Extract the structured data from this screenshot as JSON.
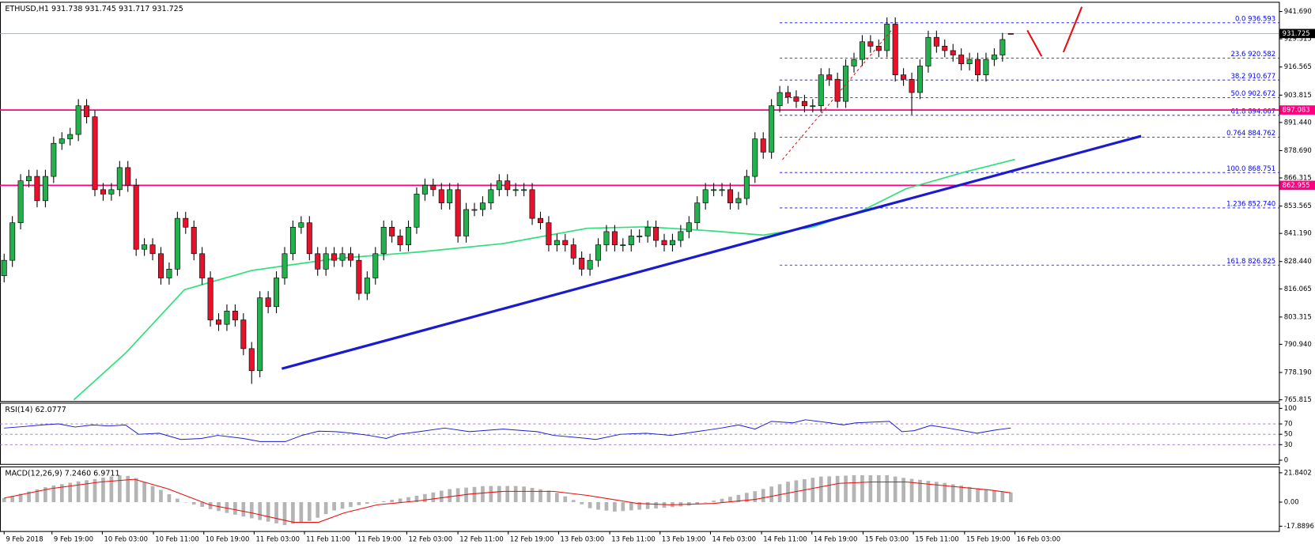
{
  "chart_data": {
    "type": "candlestick",
    "symbol": "ETHUSD,H1",
    "up_color": "#22b14c",
    "down_color": "#e8102a",
    "xlim": [
      -0.5,
      154.5
    ],
    "xticks": [
      {
        "value": 0,
        "label": "9 Feb 2018"
      },
      {
        "value": 5.8,
        "label": "9 Feb 19:00"
      },
      {
        "value": 11.9,
        "label": "10 Feb 03:00"
      },
      {
        "value": 18.1,
        "label": "10 Feb 11:00"
      },
      {
        "value": 24.2,
        "label": "10 Feb 19:00"
      },
      {
        "value": 30.3,
        "label": "11 Feb 03:00"
      },
      {
        "value": 36.4,
        "label": "11 Feb 11:00"
      },
      {
        "value": 42.6,
        "label": "11 Feb 19:00"
      },
      {
        "value": 48.8,
        "label": "12 Feb 03:00"
      },
      {
        "value": 55,
        "label": "12 Feb 11:00"
      },
      {
        "value": 61.1,
        "label": "12 Feb 19:00"
      },
      {
        "value": 67.2,
        "label": "13 Feb 03:00"
      },
      {
        "value": 73.4,
        "label": "13 Feb 11:00"
      },
      {
        "value": 79.5,
        "label": "13 Feb 19:00"
      },
      {
        "value": 85.6,
        "label": "14 Feb 03:00"
      },
      {
        "value": 91.8,
        "label": "14 Feb 11:00"
      },
      {
        "value": 97.9,
        "label": "14 Feb 19:00"
      },
      {
        "value": 104.1,
        "label": "15 Feb 03:00"
      },
      {
        "value": 110.2,
        "label": "15 Feb 11:00"
      },
      {
        "value": 116.4,
        "label": "15 Feb 19:00"
      },
      {
        "value": 122.5,
        "label": "16 Feb 03:00"
      }
    ],
    "ylim": [
      765.05,
      945.88
    ],
    "yticks": [
      {
        "value": 941.69,
        "label": "941.690"
      },
      929.315,
      916.565,
      903.815,
      {
        "value": 891.44,
        "label": "891.440"
      },
      {
        "value": 878.69,
        "label": "878.690"
      },
      866.315,
      853.565,
      {
        "value": 841.19,
        "label": "841.190"
      },
      {
        "value": 828.44,
        "label": "828.440"
      },
      816.065,
      803.315,
      {
        "value": 790.94,
        "label": "790.940"
      },
      {
        "value": 778.19,
        "label": "778.190"
      },
      765.815
    ],
    "candles": [
      [
        822,
        832,
        819,
        829
      ],
      [
        829,
        849,
        826,
        846
      ],
      [
        846,
        868,
        843,
        865
      ],
      [
        865,
        870,
        862,
        867
      ],
      [
        867,
        870,
        853,
        856
      ],
      [
        856,
        870,
        853,
        867
      ],
      [
        867,
        885,
        864,
        882
      ],
      [
        882,
        887,
        879,
        884
      ],
      [
        884,
        889,
        881,
        886
      ],
      [
        886,
        902,
        883,
        899
      ],
      [
        899,
        902,
        891,
        894
      ],
      [
        894,
        897,
        858,
        861
      ],
      [
        861,
        864,
        856,
        859
      ],
      [
        859,
        864,
        856,
        861
      ],
      [
        861,
        874,
        858,
        871
      ],
      [
        871,
        874,
        860,
        863
      ],
      [
        863,
        866,
        831,
        834
      ],
      [
        834,
        839,
        831,
        836
      ],
      [
        836,
        839,
        829,
        832
      ],
      [
        832,
        835,
        818,
        821
      ],
      [
        821,
        828,
        818,
        825
      ],
      [
        825,
        851,
        822,
        848
      ],
      [
        848,
        851,
        841,
        844
      ],
      [
        844,
        847,
        829,
        832
      ],
      [
        832,
        835,
        818,
        821
      ],
      [
        821,
        824,
        799,
        802
      ],
      [
        802,
        805,
        797,
        800
      ],
      [
        800,
        809,
        797,
        806
      ],
      [
        806,
        809,
        799,
        802
      ],
      [
        802,
        805,
        786,
        789
      ],
      [
        789,
        792,
        773,
        779
      ],
      [
        779,
        815,
        776,
        812
      ],
      [
        812,
        815,
        805,
        808
      ],
      [
        808,
        824,
        805,
        821
      ],
      [
        821,
        835,
        818,
        832
      ],
      [
        832,
        847,
        829,
        844
      ],
      [
        844,
        849,
        841,
        846
      ],
      [
        846,
        849,
        829,
        832
      ],
      [
        832,
        835,
        822,
        825
      ],
      [
        825,
        835,
        822,
        832
      ],
      [
        832,
        835,
        826,
        829
      ],
      [
        829,
        835,
        826,
        832
      ],
      [
        832,
        835,
        826,
        829
      ],
      [
        829,
        832,
        811,
        814
      ],
      [
        814,
        824,
        811,
        821
      ],
      [
        821,
        835,
        818,
        832
      ],
      [
        832,
        847,
        829,
        844
      ],
      [
        844,
        847,
        837,
        840
      ],
      [
        840,
        843,
        833,
        836
      ],
      [
        836,
        847,
        833,
        844
      ],
      [
        844,
        862,
        841,
        859
      ],
      [
        859,
        866,
        856,
        863
      ],
      [
        863,
        866,
        858,
        861
      ],
      [
        861,
        864,
        852,
        855
      ],
      [
        855,
        864,
        852,
        861
      ],
      [
        861,
        864,
        837,
        840
      ],
      [
        840,
        855,
        837,
        852
      ],
      [
        852,
        855,
        849,
        852
      ],
      [
        852,
        858,
        849,
        855
      ],
      [
        855,
        864,
        852,
        861
      ],
      [
        861,
        868,
        858,
        865
      ],
      [
        865,
        868,
        858,
        861
      ],
      [
        861,
        864,
        858,
        861
      ],
      [
        861,
        864,
        858,
        861
      ],
      [
        861,
        864,
        845,
        848
      ],
      [
        848,
        851,
        843,
        846
      ],
      [
        846,
        849,
        833,
        836
      ],
      [
        836,
        841,
        833,
        838
      ],
      [
        838,
        841,
        833,
        836
      ],
      [
        836,
        839,
        827,
        830
      ],
      [
        830,
        833,
        822,
        825
      ],
      [
        825,
        832,
        822,
        829
      ],
      [
        829,
        839,
        826,
        836
      ],
      [
        836,
        845,
        833,
        842
      ],
      [
        842,
        845,
        833,
        836
      ],
      [
        836,
        839,
        833,
        836
      ],
      [
        836,
        843,
        833,
        840
      ],
      [
        840,
        843,
        837,
        840
      ],
      [
        840,
        847,
        837,
        844
      ],
      [
        844,
        847,
        835,
        838
      ],
      [
        838,
        841,
        833,
        836
      ],
      [
        836,
        841,
        833,
        838
      ],
      [
        838,
        845,
        835,
        842
      ],
      [
        842,
        849,
        839,
        846
      ],
      [
        846,
        858,
        843,
        855
      ],
      [
        855,
        864,
        852,
        861
      ],
      [
        861,
        864,
        858,
        861
      ],
      [
        861,
        864,
        858,
        861
      ],
      [
        861,
        864,
        852,
        855
      ],
      [
        855,
        860,
        852,
        857
      ],
      [
        857,
        870,
        854,
        867
      ],
      [
        867,
        887,
        864,
        884
      ],
      [
        884,
        887,
        875,
        878
      ],
      [
        878,
        902,
        875,
        899
      ],
      [
        899,
        908,
        896,
        905
      ],
      [
        905,
        908,
        900,
        903
      ],
      [
        903,
        906,
        898,
        901
      ],
      [
        901,
        904,
        896,
        899
      ],
      [
        899,
        902,
        896,
        899
      ],
      [
        899,
        916,
        896,
        913
      ],
      [
        913,
        916,
        908,
        911
      ],
      [
        911,
        914,
        898,
        901
      ],
      [
        901,
        920,
        898,
        917
      ],
      [
        917,
        923,
        914,
        920
      ],
      [
        920,
        931,
        917,
        928
      ],
      [
        928,
        931,
        923,
        926
      ],
      [
        926,
        929,
        921,
        924
      ],
      [
        924,
        939,
        921,
        936
      ],
      [
        936,
        939,
        910,
        913
      ],
      [
        913,
        916,
        908,
        911
      ],
      [
        911,
        914,
        895,
        905
      ],
      [
        905,
        920,
        902,
        917
      ],
      [
        917,
        933,
        914,
        930
      ],
      [
        930,
        933,
        923,
        926
      ],
      [
        926,
        929,
        921,
        924
      ],
      [
        924,
        927,
        919,
        922
      ],
      [
        922,
        925,
        915,
        918
      ],
      [
        918,
        923,
        915,
        920
      ],
      [
        920,
        923,
        910,
        913
      ],
      [
        913,
        923,
        910,
        920
      ],
      [
        920,
        925,
        917,
        922
      ],
      [
        922,
        932,
        919,
        929
      ],
      [
        931.738,
        931.745,
        931.717,
        931.725
      ]
    ],
    "levels": [
      {
        "value": 897.083,
        "color": "#ff0080"
      },
      {
        "value": 862.955,
        "color": "#ff0080"
      }
    ],
    "current_color": "#000000",
    "fib": {
      "start": 94,
      "color": "#0000ff",
      "ratios": [
        "0.0",
        "23.6",
        "38.2",
        "50.0",
        "61.8",
        "0.764",
        "100.0",
        "1.236",
        "161.8"
      ],
      "values": [
        936.593,
        920.582,
        910.677,
        902.672,
        894.667,
        884.762,
        868.751,
        852.74,
        826.825
      ],
      "value_labels": [
        "936.593",
        "920.582",
        "910.677",
        "902.672",
        "894.667",
        "884.762",
        "868.751",
        "852.740",
        "826.825"
      ]
    },
    "trendline": {
      "x": [
        33.65,
        137.8
      ],
      "values": [
        779.9,
        885.3
      ],
      "color": "#1a1ad0"
    },
    "ma": {
      "color": "#2ee07a",
      "x": [
        8.44,
        14.74,
        21.86,
        29.99,
        40.16,
        50.32,
        60.49,
        70.66,
        77.78,
        85.91,
        92.01,
        98.11,
        104.21,
        109.29,
        116.41,
        122.5
      ],
      "values": [
        765.8,
        787,
        815.7,
        824.4,
        829.8,
        832.8,
        836.6,
        843.5,
        844.2,
        842.3,
        840.4,
        844.2,
        851.9,
        861.4,
        869,
        874.7
      ]
    },
    "rsi": {
      "name": "RSI(14)",
      "color": "#1a1ad0",
      "level_color": "#9a6fd0",
      "ylim": [
        -8,
        110
      ],
      "yticks": [
        100,
        70,
        50,
        30,
        0
      ],
      "levels": [
        70,
        50,
        30
      ],
      "x": [
        0,
        2.5,
        4.6,
        6.6,
        8.6,
        10.7,
        12.7,
        14.7,
        16.3,
        18.8,
        21.4,
        23.9,
        25.9,
        29,
        31,
        34.1,
        36.1,
        38.1,
        40.2,
        42.2,
        44.2,
        46.3,
        47.8,
        50.3,
        53.4,
        56.4,
        60.5,
        64.6,
        66.6,
        70.7,
        71.7,
        74.7,
        77.8,
        80.8,
        83.9,
        86.9,
        89,
        91,
        93,
        95.6,
        97.1,
        100.1,
        101.7,
        103.2,
        107.3,
        108.8,
        110.3,
        112.3,
        114.4,
        117.9,
        120,
        122
      ],
      "values": [
        62,
        65,
        68,
        70,
        64,
        68,
        66,
        68,
        50,
        52,
        40,
        42,
        48,
        42,
        36,
        36,
        48,
        56,
        55,
        52,
        48,
        42,
        50,
        55,
        62,
        55,
        60,
        55,
        48,
        42,
        40,
        50,
        52,
        48,
        55,
        62,
        68,
        60,
        75,
        72,
        78,
        72,
        68,
        72,
        75,
        55,
        57,
        67,
        62,
        52,
        58,
        62.0777
      ]
    },
    "macd": {
      "name": "MACD(12,26,9)",
      "hist_color": "#b4b4b4",
      "signal_color": "#e81010",
      "ylim": [
        -21.8,
        26.2
      ],
      "yticks": [
        21.8402,
        {
          "value": 0,
          "label": "0.00"
        },
        -17.8896
      ],
      "histogram": [
        3,
        4.6,
        6.2,
        7.9,
        9.5,
        11.1,
        12.4,
        13.4,
        14.4,
        15.4,
        16.3,
        17.2,
        18.2,
        19.1,
        19.9,
        19.5,
        17.9,
        14.9,
        11.9,
        9.1,
        5.9,
        2.6,
        -0.2,
        -1.8,
        -3.5,
        -5.2,
        -6.6,
        -8,
        -9.3,
        -10.7,
        -12,
        -13.3,
        -14.5,
        -15.8,
        -17,
        -16.1,
        -15.1,
        -14,
        -11.6,
        -8.9,
        -6.2,
        -4.9,
        -3.6,
        -2.2,
        -1.2,
        -0.2,
        0.7,
        1.7,
        2.7,
        3.7,
        4.7,
        6,
        7.2,
        8.5,
        9.7,
        10.3,
        10.8,
        11.3,
        11.9,
        12,
        12,
        12,
        12,
        11.6,
        10.6,
        9.6,
        8.6,
        6.9,
        4.3,
        1.6,
        -1.6,
        -4.5,
        -5.6,
        -6.3,
        -7,
        -6.6,
        -6.1,
        -5.6,
        -5.1,
        -4.7,
        -4.2,
        -3.7,
        -3.2,
        -2.6,
        -1.4,
        -0.2,
        1.1,
        2.5,
        4,
        5.4,
        6.9,
        8.1,
        9.8,
        11.6,
        13.3,
        15.2,
        16.2,
        17.1,
        18.1,
        19,
        19.2,
        19.5,
        19.7,
        20,
        20,
        20,
        20,
        20,
        19,
        18.1,
        17.3,
        16.6,
        15.8,
        15.1,
        14.3,
        13.3,
        12.3,
        11.3,
        10.3,
        9.5,
        8.7,
        8,
        7.246
      ],
      "histogram_label": "7.2460",
      "signal": {
        "x": [
          0,
          5.6,
          11.7,
          15.8,
          19.8,
          24.9,
          30,
          35.1,
          38.1,
          41.2,
          45.2,
          50.3,
          56.4,
          60.5,
          66.6,
          70.7,
          76.8,
          80.8,
          85.9,
          91,
          96.1,
          101.2,
          105.2,
          109.3,
          114.4,
          119.5,
          122
        ],
        "values": [
          3,
          10,
          15,
          17,
          10,
          -2,
          -8,
          -15,
          -15,
          -8,
          -2,
          1,
          6,
          8,
          8,
          5,
          -1,
          -2,
          -1,
          2,
          8,
          14,
          15,
          15,
          12,
          9,
          6.9711
        ]
      }
    }
  }
}
